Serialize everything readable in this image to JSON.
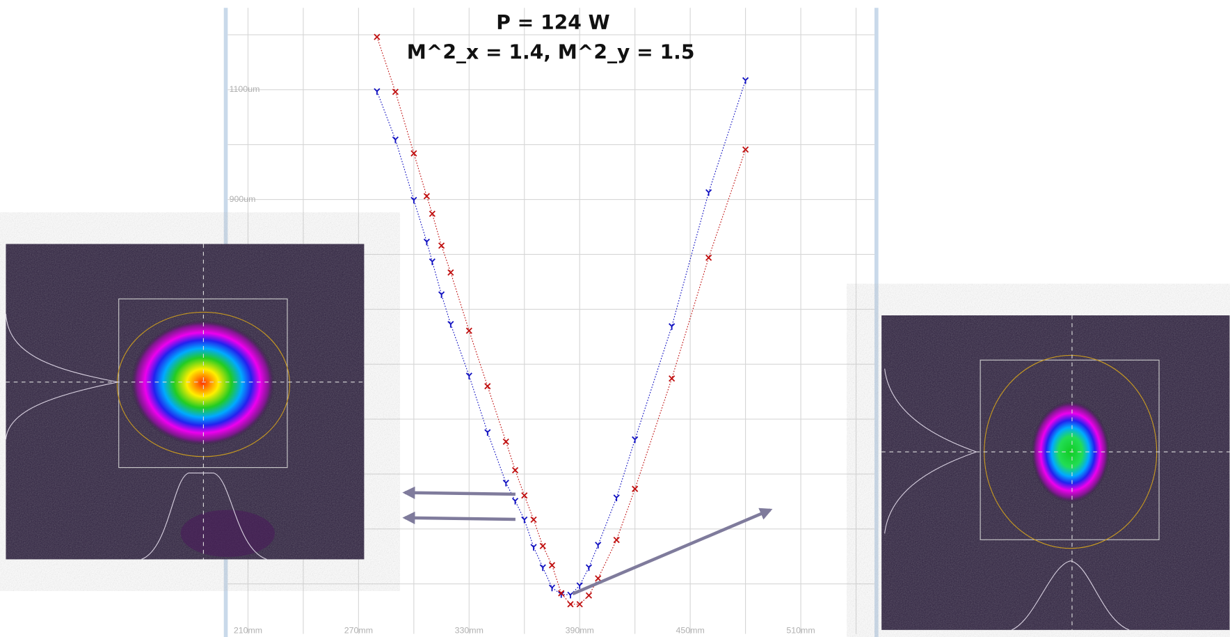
{
  "chart_data": {
    "type": "scatter",
    "annotations": [
      "P = 124 W",
      "M^2_x = 1.4, M^2_y = 1.5"
    ],
    "xlim": [
      199,
      550
    ],
    "ylim": [
      109,
      1249
    ],
    "xticks": [
      {
        "value": 210,
        "label": "210mm"
      },
      {
        "value": 270,
        "label": "270mm"
      },
      {
        "value": 330,
        "label": "330mm"
      },
      {
        "value": 390,
        "label": "390mm"
      },
      {
        "value": 450,
        "label": "450mm"
      },
      {
        "value": 510,
        "label": "510mm"
      }
    ],
    "yticks": [
      {
        "value": 900,
        "label": "900um"
      },
      {
        "value": 1100,
        "label": "1100um"
      }
    ],
    "xgrid": [
      210,
      240,
      270,
      300,
      330,
      360,
      390,
      420,
      450,
      480,
      510,
      540
    ],
    "ygrid": [
      200,
      300,
      400,
      500,
      600,
      700,
      800,
      900,
      1000,
      1100,
      1200
    ],
    "lines": true,
    "series": [
      {
        "color": "#1010c0",
        "marker": "y",
        "x": [
          280,
          290,
          300,
          307,
          310,
          315,
          320,
          330,
          340,
          350,
          355,
          360,
          365,
          370,
          375,
          380,
          385,
          390,
          395,
          400,
          410,
          420,
          440,
          460,
          480
        ],
        "values": [
          1097,
          1009,
          899,
          823,
          787,
          727,
          673,
          579,
          476,
          384,
          351,
          317,
          267,
          230,
          193,
          181,
          180,
          197,
          230,
          271,
          357,
          463,
          669,
          913,
          1117
        ]
      },
      {
        "color": "#c01010",
        "marker": "x",
        "x": [
          280,
          290,
          300,
          307,
          310,
          315,
          320,
          330,
          340,
          350,
          355,
          360,
          365,
          370,
          375,
          380,
          385,
          390,
          395,
          400,
          410,
          420,
          440,
          460,
          480
        ],
        "values": [
          1196,
          1096,
          984,
          906,
          874,
          816,
          767,
          661,
          560,
          459,
          407,
          361,
          317,
          269,
          234,
          183,
          163,
          163,
          179,
          210,
          280,
          373,
          574,
          794,
          991
        ]
      }
    ]
  }
}
